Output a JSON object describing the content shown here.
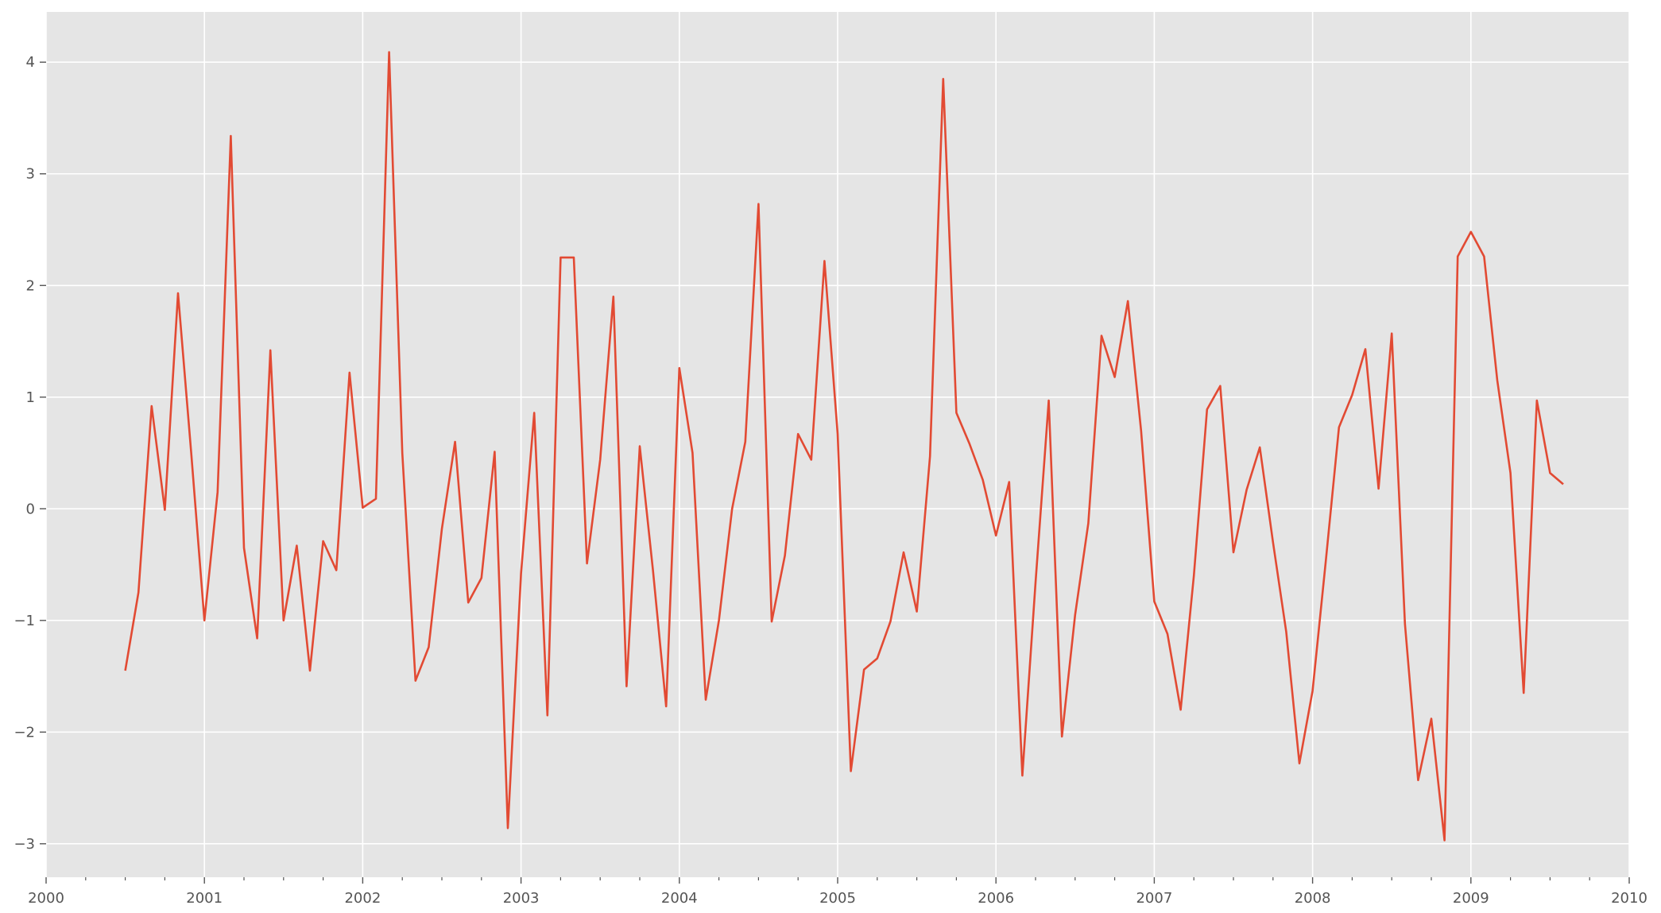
{
  "chart_data": {
    "type": "line",
    "title": "",
    "xlabel": "",
    "ylabel": "",
    "xlim": [
      "2000-01",
      "2010-01"
    ],
    "ylim": [
      -3.3,
      4.45
    ],
    "grid": true,
    "legend": "none",
    "colors": {
      "background": "#e5e5e5",
      "grid": "#ffffff",
      "line": "#e24a33",
      "tick_text": "#555555"
    },
    "x_ticks": [
      "2000",
      "2001",
      "2002",
      "2003",
      "2004",
      "2005",
      "2006",
      "2007",
      "2008",
      "2009",
      "2010"
    ],
    "y_ticks": [
      -3,
      -2,
      -1,
      0,
      1,
      2,
      3,
      4
    ],
    "y_tick_labels": [
      "−3",
      "−2",
      "−1",
      "0",
      "1",
      "2",
      "3",
      "4"
    ],
    "series": [
      {
        "x": [
          "2000-07",
          "2000-08",
          "2000-09",
          "2000-10",
          "2000-11",
          "2000-12",
          "2001-01",
          "2001-02",
          "2001-03",
          "2001-04",
          "2001-05",
          "2001-06",
          "2001-07",
          "2001-08",
          "2001-09",
          "2001-10",
          "2001-11",
          "2001-12",
          "2002-01",
          "2002-02",
          "2002-03",
          "2002-04",
          "2002-05",
          "2002-06",
          "2002-07",
          "2002-08",
          "2002-09",
          "2002-10",
          "2002-11",
          "2002-12",
          "2003-01",
          "2003-02",
          "2003-03",
          "2003-04",
          "2003-05",
          "2003-06",
          "2003-07",
          "2003-08",
          "2003-09",
          "2003-10",
          "2003-11",
          "2003-12",
          "2004-01",
          "2004-02",
          "2004-03",
          "2004-04",
          "2004-05",
          "2004-06",
          "2004-07",
          "2004-08",
          "2004-09",
          "2004-10",
          "2004-11",
          "2004-12",
          "2005-01",
          "2005-02",
          "2005-03",
          "2005-04",
          "2005-05",
          "2005-06",
          "2005-07",
          "2005-08",
          "2005-09",
          "2005-10",
          "2005-11",
          "2005-12",
          "2006-01",
          "2006-02",
          "2006-03",
          "2006-04",
          "2006-05",
          "2006-06",
          "2006-07",
          "2006-08",
          "2006-09",
          "2006-10",
          "2006-11",
          "2006-12",
          "2007-01",
          "2007-02",
          "2007-03",
          "2007-04",
          "2007-05",
          "2007-06",
          "2007-07",
          "2007-08",
          "2007-09",
          "2007-10",
          "2007-11",
          "2007-12",
          "2008-01",
          "2008-02",
          "2008-03",
          "2008-04",
          "2008-05",
          "2008-06",
          "2008-07",
          "2008-08",
          "2008-09",
          "2008-10",
          "2008-11",
          "2008-12",
          "2009-01",
          "2009-02",
          "2009-03",
          "2009-04",
          "2009-05",
          "2009-06",
          "2009-07",
          "2009-08"
        ],
        "values": [
          -1.45,
          -0.75,
          0.92,
          -0.01,
          1.93,
          0.5,
          -1.0,
          0.15,
          3.34,
          -0.35,
          -1.16,
          1.42,
          -1.0,
          -0.33,
          -1.45,
          -0.29,
          -0.55,
          1.22,
          0.01,
          0.09,
          4.09,
          0.5,
          -1.54,
          -1.24,
          -0.18,
          0.6,
          -0.84,
          -0.62,
          0.51,
          -2.86,
          -0.58,
          0.86,
          -1.85,
          2.25,
          2.25,
          -0.49,
          0.44,
          1.9,
          -1.59,
          0.56,
          -0.55,
          -1.77,
          1.26,
          0.5,
          -1.71,
          -1.0,
          0.0,
          0.6,
          2.73,
          -1.01,
          -0.42,
          0.67,
          0.44,
          2.22,
          0.67,
          -2.35,
          -1.44,
          -1.34,
          -1.01,
          -0.39,
          -0.92,
          0.47,
          3.85,
          0.86,
          0.58,
          0.26,
          -0.24,
          0.24,
          -2.39,
          -0.66,
          0.97,
          -2.04,
          -0.95,
          -0.13,
          1.55,
          1.18,
          1.86,
          0.7,
          -0.83,
          -1.12,
          -1.8,
          -0.6,
          0.89,
          1.1,
          -0.39,
          0.17,
          0.55,
          -0.3,
          -1.1,
          -2.28,
          -1.63,
          -0.47,
          0.73,
          1.02,
          1.43,
          0.18,
          1.57,
          -1.03,
          -2.43,
          -1.88,
          -2.97,
          2.26,
          2.48,
          2.26,
          1.15,
          0.32,
          -1.65,
          0.97,
          0.32,
          0.22
        ]
      }
    ]
  }
}
